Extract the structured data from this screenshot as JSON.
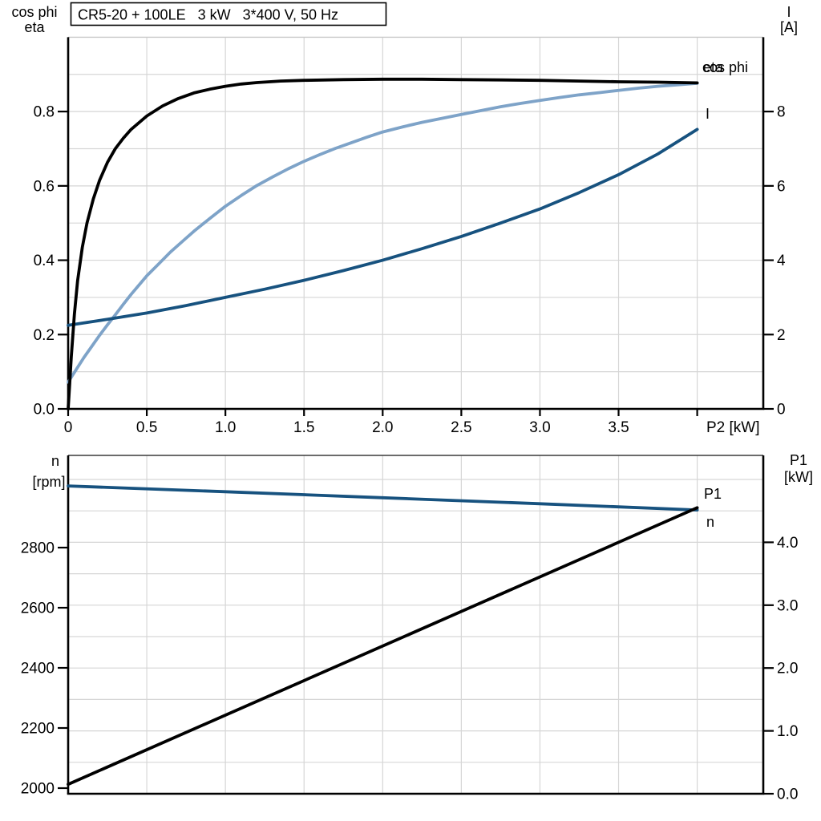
{
  "title": "CR5-20 + 100LE   3 kW   3*400 V, 50 Hz",
  "colors": {
    "black": "#000000",
    "dark_blue": "#17527F",
    "light_blue": "#7EA3C8",
    "grid": "#D6D6D6",
    "frame": "#000000",
    "top_chart_top_border": "#C8C8C8",
    "bottom_chart_top_border": "#3A3A3A",
    "background": "#FFFFFF"
  },
  "chart_data": [
    {
      "type": "line",
      "title": "CR5-20 + 100LE   3 kW   3*400 V, 50 Hz",
      "x_axis": {
        "title": "P2 [kW]",
        "range": [
          0,
          4.42
        ],
        "grid_step": 0.5,
        "ticks": [
          {
            "v": 0,
            "label": "0"
          },
          {
            "v": 0.5,
            "label": "0.5"
          },
          {
            "v": 1,
            "label": "1.0"
          },
          {
            "v": 1.5,
            "label": "1.5"
          },
          {
            "v": 2,
            "label": "2.0"
          },
          {
            "v": 2.5,
            "label": "2.5"
          },
          {
            "v": 3,
            "label": "3.0"
          },
          {
            "v": 3.5,
            "label": "3.5"
          },
          {
            "v": 4,
            "label": ""
          }
        ]
      },
      "left_axis": {
        "title_lines": [
          "cos phi",
          "eta"
        ],
        "range": [
          0,
          1.0
        ],
        "grid_step": 0.1,
        "ticks": [
          {
            "v": 0.0,
            "label": "0.0"
          },
          {
            "v": 0.2,
            "label": "0.2"
          },
          {
            "v": 0.4,
            "label": "0.4"
          },
          {
            "v": 0.6,
            "label": "0.6"
          },
          {
            "v": 0.8,
            "label": "0.8"
          }
        ]
      },
      "right_axis": {
        "title_lines": [
          "I",
          "[A]"
        ],
        "range": [
          0,
          10
        ],
        "ticks": [
          {
            "v": 0,
            "label": "0"
          },
          {
            "v": 2,
            "label": "2"
          },
          {
            "v": 4,
            "label": "4"
          },
          {
            "v": 6,
            "label": "6"
          },
          {
            "v": 8,
            "label": "8"
          }
        ]
      },
      "series": [
        {
          "name": "cos_phi",
          "axis": "left",
          "color": "#7EA3C8",
          "label": "cos phi",
          "points": [
            [
              0,
              0.072
            ],
            [
              0.05,
              0.105
            ],
            [
              0.1,
              0.138
            ],
            [
              0.15,
              0.168
            ],
            [
              0.2,
              0.198
            ],
            [
              0.25,
              0.226
            ],
            [
              0.3,
              0.253
            ],
            [
              0.35,
              0.281
            ],
            [
              0.4,
              0.308
            ],
            [
              0.45,
              0.333
            ],
            [
              0.5,
              0.358
            ],
            [
              0.58,
              0.392
            ],
            [
              0.65,
              0.422
            ],
            [
              0.73,
              0.452
            ],
            [
              0.8,
              0.478
            ],
            [
              0.9,
              0.512
            ],
            [
              1.0,
              0.545
            ],
            [
              1.1,
              0.574
            ],
            [
              1.2,
              0.601
            ],
            [
              1.3,
              0.624
            ],
            [
              1.4,
              0.646
            ],
            [
              1.5,
              0.666
            ],
            [
              1.6,
              0.684
            ],
            [
              1.7,
              0.701
            ],
            [
              1.8,
              0.716
            ],
            [
              1.9,
              0.731
            ],
            [
              2.0,
              0.745
            ],
            [
              2.13,
              0.759
            ],
            [
              2.25,
              0.771
            ],
            [
              2.38,
              0.782
            ],
            [
              2.5,
              0.792
            ],
            [
              2.63,
              0.803
            ],
            [
              2.75,
              0.813
            ],
            [
              2.88,
              0.822
            ],
            [
              3.0,
              0.83
            ],
            [
              3.13,
              0.838
            ],
            [
              3.25,
              0.845
            ],
            [
              3.38,
              0.851
            ],
            [
              3.5,
              0.857
            ],
            [
              3.63,
              0.863
            ],
            [
              3.75,
              0.868
            ],
            [
              3.88,
              0.872
            ],
            [
              4.0,
              0.876
            ]
          ]
        },
        {
          "name": "current",
          "axis": "right",
          "color": "#17527F",
          "label": "I",
          "points": [
            [
              0,
              2.25
            ],
            [
              0.25,
              2.41
            ],
            [
              0.5,
              2.58
            ],
            [
              0.75,
              2.78
            ],
            [
              1.0,
              3.0
            ],
            [
              1.25,
              3.22
            ],
            [
              1.5,
              3.46
            ],
            [
              1.75,
              3.72
            ],
            [
              2.0,
              4.0
            ],
            [
              2.25,
              4.31
            ],
            [
              2.5,
              4.64
            ],
            [
              2.75,
              5.0
            ],
            [
              3.0,
              5.38
            ],
            [
              3.25,
              5.82
            ],
            [
              3.5,
              6.3
            ],
            [
              3.75,
              6.86
            ],
            [
              4.0,
              7.52
            ]
          ]
        },
        {
          "name": "eta",
          "axis": "left",
          "color": "#000000",
          "label": "eta",
          "points": [
            [
              0,
              0
            ],
            [
              0.01,
              0.07
            ],
            [
              0.02,
              0.14
            ],
            [
              0.04,
              0.255
            ],
            [
              0.06,
              0.345
            ],
            [
              0.09,
              0.435
            ],
            [
              0.12,
              0.5
            ],
            [
              0.16,
              0.565
            ],
            [
              0.2,
              0.615
            ],
            [
              0.25,
              0.663
            ],
            [
              0.3,
              0.7
            ],
            [
              0.35,
              0.728
            ],
            [
              0.4,
              0.752
            ],
            [
              0.5,
              0.788
            ],
            [
              0.6,
              0.815
            ],
            [
              0.7,
              0.835
            ],
            [
              0.8,
              0.85
            ],
            [
              0.9,
              0.86
            ],
            [
              1.0,
              0.868
            ],
            [
              1.1,
              0.874
            ],
            [
              1.2,
              0.878
            ],
            [
              1.35,
              0.882
            ],
            [
              1.5,
              0.884
            ],
            [
              1.75,
              0.886
            ],
            [
              2.0,
              0.887
            ],
            [
              2.25,
              0.887
            ],
            [
              2.5,
              0.886
            ],
            [
              2.75,
              0.885
            ],
            [
              3.0,
              0.884
            ],
            [
              3.25,
              0.882
            ],
            [
              3.5,
              0.88
            ],
            [
              3.75,
              0.879
            ],
            [
              4.0,
              0.877
            ]
          ]
        }
      ]
    },
    {
      "type": "line",
      "x_axis": {
        "title": "",
        "range": [
          0,
          4.42
        ],
        "grid_step": 0.5,
        "ticks": []
      },
      "left_axis": {
        "title_lines": [
          "n",
          "[rpm]"
        ],
        "units": "rpm",
        "ticks": [
          {
            "v": 2800,
            "label": "2800"
          },
          {
            "v": 2600,
            "label": "2600"
          },
          {
            "v": 2400,
            "label": "2400"
          },
          {
            "v": 2200,
            "label": "2200"
          },
          {
            "v": 2000,
            "label": "2000"
          }
        ]
      },
      "right_axis": {
        "title_lines": [
          "P1",
          "[kW]"
        ],
        "range": [
          0,
          5.39
        ],
        "grid_step": 0.5,
        "ticks": [
          {
            "v": 4.0,
            "label": "4.0"
          },
          {
            "v": 3.0,
            "label": "3.0"
          },
          {
            "v": 2.0,
            "label": "2.0"
          },
          {
            "v": 1.0,
            "label": "1.0"
          },
          {
            "v": 0.0,
            "label": "0.0"
          }
        ]
      },
      "series": [
        {
          "name": "n",
          "axis": "left",
          "color": "#17527F",
          "label": "n",
          "points": [
            [
              0,
              3005
            ],
            [
              1,
              2986
            ],
            [
              2,
              2966
            ],
            [
              3,
              2946
            ],
            [
              4,
              2925
            ]
          ]
        },
        {
          "name": "P1",
          "axis": "right",
          "color": "#000000",
          "label": "P1",
          "points": [
            [
              0,
              0.15
            ],
            [
              4,
              4.55
            ]
          ]
        }
      ]
    }
  ]
}
